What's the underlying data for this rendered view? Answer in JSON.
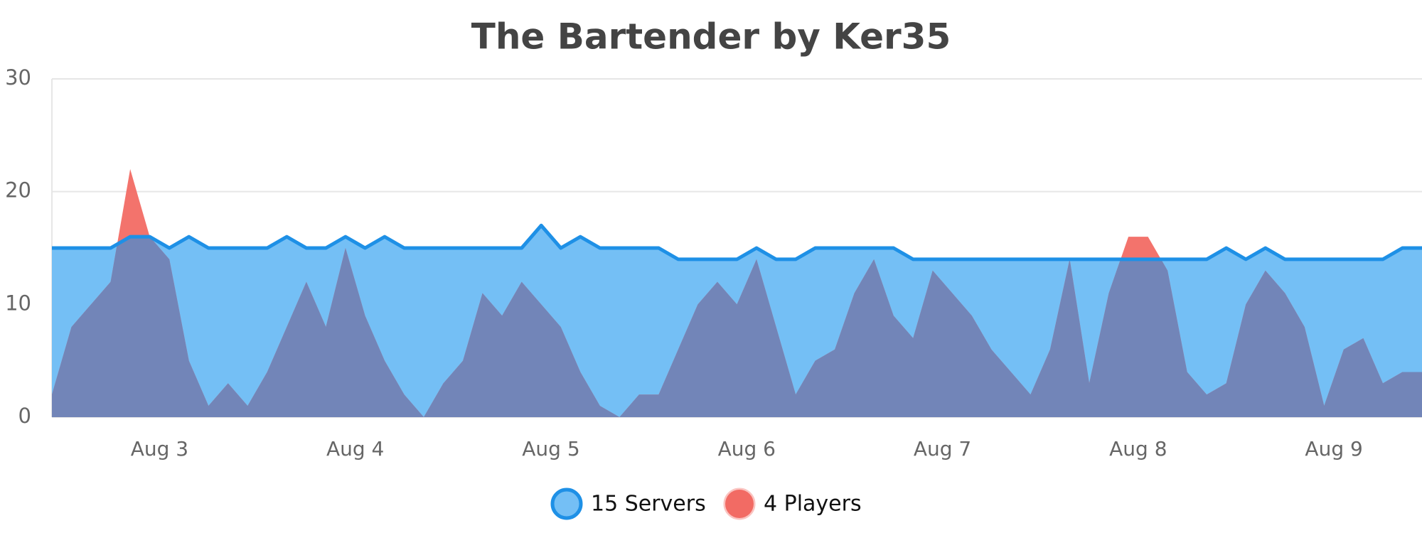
{
  "chart_data": {
    "type": "area",
    "title": "The Bartender by Ker35",
    "x": [
      2.45,
      2.55,
      2.65,
      2.75,
      2.85,
      2.95,
      3.05,
      3.15,
      3.25,
      3.35,
      3.45,
      3.55,
      3.65,
      3.75,
      3.85,
      3.95,
      4.05,
      4.15,
      4.25,
      4.35,
      4.45,
      4.55,
      4.65,
      4.75,
      4.85,
      4.95,
      5.05,
      5.15,
      5.25,
      5.35,
      5.45,
      5.55,
      5.65,
      5.75,
      5.85,
      5.95,
      6.05,
      6.15,
      6.25,
      6.35,
      6.45,
      6.55,
      6.65,
      6.75,
      6.85,
      6.95,
      7.05,
      7.15,
      7.25,
      7.35,
      7.45,
      7.55,
      7.65,
      7.75,
      7.85,
      7.95,
      8.05,
      8.15,
      8.25,
      8.35,
      8.45,
      8.55,
      8.65,
      8.75,
      8.85,
      8.95,
      9.05,
      9.15,
      9.25,
      9.35,
      9.45
    ],
    "series": [
      {
        "name": "15 Servers",
        "color": "#1e90e6",
        "fill": "#74bff5",
        "values": [
          15,
          15,
          15,
          15,
          16,
          16,
          15,
          16,
          15,
          15,
          15,
          15,
          16,
          15,
          15,
          16,
          15,
          16,
          15,
          15,
          15,
          15,
          15,
          15,
          15,
          17,
          15,
          16,
          15,
          15,
          15,
          15,
          14,
          14,
          14,
          14,
          15,
          14,
          14,
          15,
          15,
          15,
          15,
          15,
          14,
          14,
          14,
          14,
          14,
          14,
          14,
          14,
          14,
          14,
          14,
          14,
          14,
          14,
          14,
          14,
          15,
          14,
          15,
          14,
          14,
          14,
          14,
          14,
          14,
          15,
          15
        ]
      },
      {
        "name": "4 Players",
        "color": "#f26b64",
        "fill": "#f26b64",
        "values": [
          2,
          8,
          10,
          12,
          22,
          16,
          14,
          5,
          1,
          3,
          1,
          4,
          8,
          12,
          8,
          15,
          9,
          5,
          2,
          0,
          3,
          5,
          11,
          9,
          12,
          10,
          8,
          4,
          1,
          0,
          2,
          2,
          6,
          10,
          12,
          10,
          14,
          8,
          2,
          5,
          6,
          11,
          14,
          9,
          7,
          13,
          11,
          9,
          6,
          4,
          2,
          6,
          14,
          3,
          11,
          16,
          16,
          13,
          4,
          2,
          3,
          10,
          13,
          11,
          8,
          1,
          6,
          7,
          3,
          4,
          4
        ]
      }
    ],
    "xlim": [
      2.45,
      9.45
    ],
    "xticks": [
      {
        "value": 3,
        "label": "Aug 3"
      },
      {
        "value": 4,
        "label": "Aug 4"
      },
      {
        "value": 5,
        "label": "Aug 5"
      },
      {
        "value": 6,
        "label": "Aug 6"
      },
      {
        "value": 7,
        "label": "Aug 7"
      },
      {
        "value": 8,
        "label": "Aug 8"
      },
      {
        "value": 9,
        "label": "Aug 9"
      }
    ],
    "ylim": [
      0,
      30
    ],
    "yticks": [
      0,
      10,
      20,
      30
    ],
    "grid": true,
    "overlap_color": "#7285b8"
  }
}
